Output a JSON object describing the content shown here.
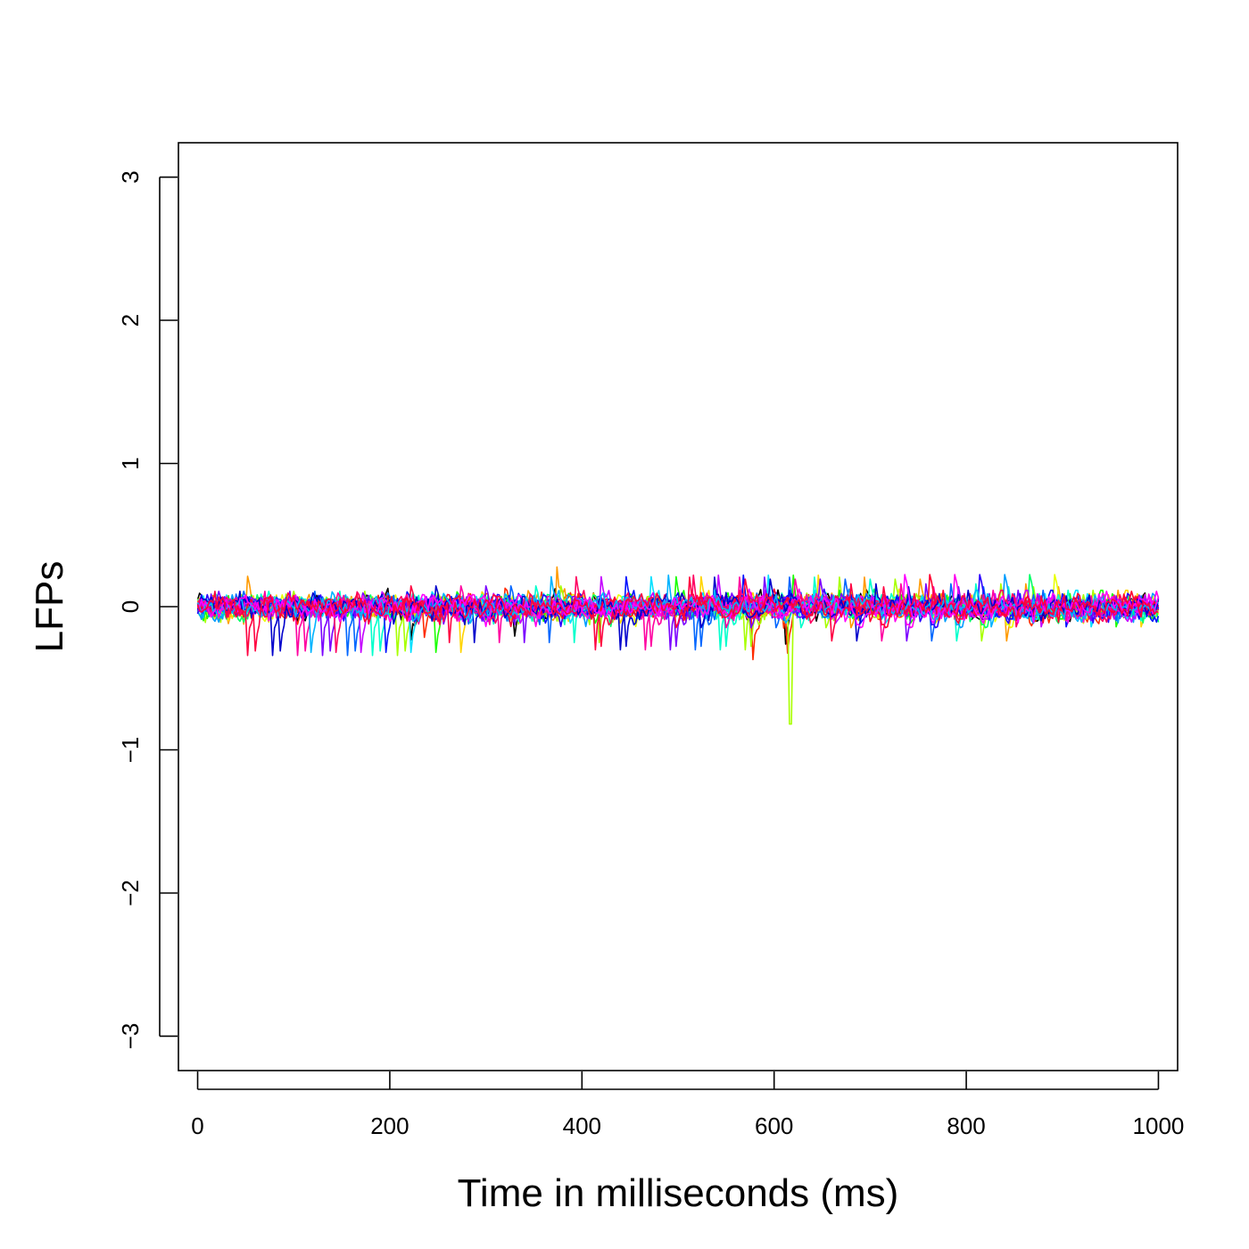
{
  "chart_data": {
    "type": "line",
    "title": "",
    "xlabel": "Time in milliseconds (ms)",
    "ylabel": "LFPs",
    "xlim": [
      -20,
      1020
    ],
    "ylim": [
      -3.24,
      3.24
    ],
    "x_ticks": [
      0,
      200,
      400,
      600,
      800,
      1000
    ],
    "y_ticks": [
      -3,
      -2,
      -1,
      0,
      1,
      2,
      3
    ],
    "x_tick_labels": [
      "0",
      "200",
      "400",
      "600",
      "800",
      "1000"
    ],
    "y_tick_labels": [
      "−3",
      "−2",
      "−1",
      "0",
      "1",
      "2",
      "3"
    ],
    "grid": false,
    "legend": "none",
    "series_count": 24,
    "sample_count": 500,
    "x_range": [
      0,
      1000
    ],
    "amplitude_typical": 0.1,
    "amplitude_max": 0.43,
    "notable_spike": {
      "x": 617,
      "y": -0.82,
      "color": "#a8ff00"
    },
    "colors": [
      "#000000",
      "#ff2a00",
      "#ff9a00",
      "#ffd400",
      "#e8ff00",
      "#a8ff00",
      "#19ff00",
      "#00ff66",
      "#00ffcc",
      "#00e0ff",
      "#009cff",
      "#0066ff",
      "#0010ff",
      "#2a00ff",
      "#7a00ff",
      "#c400ff",
      "#ff00ee",
      "#ff00a0",
      "#ff0060",
      "#ff0030",
      "#0000cc",
      "#00b3ff",
      "#ff00ff",
      "#ff0040"
    ]
  }
}
